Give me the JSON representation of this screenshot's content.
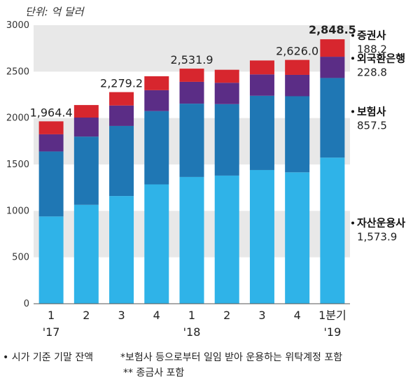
{
  "unit_label": "단위: 억 달러",
  "footnotes": {
    "note1": "• 시가 기준 기말 잔액",
    "note2": "*보험사 등으로부터 일임 받아 운용하는 위탁계정 포함",
    "note3": "** 종금사 포함"
  },
  "chart_data": {
    "type": "bar",
    "stacked": true,
    "categories": [
      "1",
      "2",
      "3",
      "4",
      "1",
      "2",
      "3",
      "4",
      "1분기"
    ],
    "year_labels": [
      {
        "index": 0,
        "label": "'17"
      },
      {
        "index": 4,
        "label": "'18"
      },
      {
        "index": 8,
        "label": "'19"
      }
    ],
    "ylim": [
      0,
      3000
    ],
    "yticks": [
      0,
      500,
      1000,
      1500,
      2000,
      2500,
      3000
    ],
    "grid_bands": true,
    "series": [
      {
        "name": "자산운용사",
        "color": "#2fb3e8",
        "values": [
          940,
          1065,
          1160,
          1285,
          1365,
          1380,
          1440,
          1415,
          1573.9
        ]
      },
      {
        "name": "보험사",
        "color": "#1f77b4",
        "values": [
          700,
          735,
          755,
          790,
          790,
          770,
          800,
          820,
          857.5
        ]
      },
      {
        "name": "외국환은행",
        "color": "#5b2d86",
        "values": [
          185,
          205,
          220,
          225,
          235,
          230,
          230,
          230,
          228.8
        ]
      },
      {
        "name": "증권사",
        "color": "#d7262e",
        "values": [
          139.4,
          135,
          144.2,
          150,
          141.9,
          140,
          150,
          161,
          188.2
        ]
      }
    ],
    "totals": [
      {
        "index": 0,
        "label": "1,964.4"
      },
      {
        "index": 2,
        "label": "2,279.2"
      },
      {
        "index": 4,
        "label": "2,531.9"
      },
      {
        "index": 7,
        "label": "2,626.0"
      },
      {
        "index": 8,
        "label": "2,848.5"
      }
    ],
    "legend_labels": [
      {
        "series": 3,
        "name": "증권사",
        "value": "188.2"
      },
      {
        "series": 2,
        "name": "외국환은행",
        "value": "228.8"
      },
      {
        "series": 1,
        "name": "보험사",
        "value": "857.5"
      },
      {
        "series": 0,
        "name": "자산운용사",
        "value": "1,573.9"
      }
    ]
  }
}
